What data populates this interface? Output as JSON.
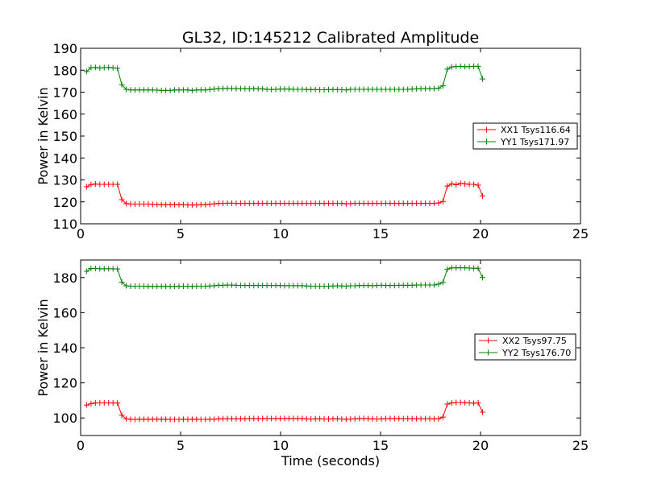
{
  "chart_data": [
    {
      "type": "line",
      "title": "GL32, ID:145212 Calibrated Amplitude",
      "xlabel": "",
      "ylabel": "Power in Kelvin",
      "xlim": [
        0,
        25
      ],
      "ylim": [
        110,
        190
      ],
      "x_ticks": [
        0,
        5,
        10,
        15,
        20,
        25
      ],
      "y_ticks": [
        110,
        120,
        130,
        140,
        150,
        160,
        170,
        180,
        190
      ],
      "grid": false,
      "legend_position": "center-right",
      "marker": "plus",
      "series": [
        {
          "name": "XX1 Tsys116.64",
          "color": "#ff0000",
          "x": [
            0.3,
            0.52,
            0.74,
            0.96,
            1.18,
            1.4,
            1.62,
            1.84,
            2.06,
            2.28,
            2.5,
            2.72,
            2.94,
            3.16,
            3.38,
            3.6,
            3.82,
            4.04,
            4.26,
            4.48,
            4.7,
            4.92,
            5.14,
            5.36,
            5.58,
            5.8,
            6.02,
            6.24,
            6.46,
            6.68,
            6.9,
            7.12,
            7.34,
            7.56,
            7.78,
            8.0,
            8.22,
            8.44,
            8.66,
            8.88,
            9.1,
            9.32,
            9.54,
            9.76,
            9.98,
            10.2,
            10.42,
            10.64,
            10.86,
            11.08,
            11.3,
            11.52,
            11.74,
            11.96,
            12.18,
            12.4,
            12.62,
            12.84,
            13.06,
            13.28,
            13.5,
            13.72,
            13.94,
            14.16,
            14.38,
            14.6,
            14.82,
            15.04,
            15.26,
            15.48,
            15.7,
            15.92,
            16.14,
            16.36,
            16.58,
            16.8,
            17.02,
            17.24,
            17.46,
            17.68,
            17.9,
            18.12,
            18.34,
            18.56,
            18.78,
            19.0,
            19.22,
            19.44,
            19.66,
            19.88,
            20.1
          ],
          "values": [
            126.9,
            127.9,
            128.1,
            128.0,
            128.0,
            128.0,
            128.0,
            128.0,
            121.0,
            119.2,
            119.0,
            119.0,
            119.0,
            119.0,
            119.0,
            118.8,
            118.7,
            118.7,
            118.7,
            118.7,
            118.7,
            118.7,
            118.7,
            118.6,
            118.6,
            118.6,
            118.7,
            118.7,
            118.9,
            119.1,
            119.3,
            119.3,
            119.4,
            119.4,
            119.3,
            119.3,
            119.3,
            119.3,
            119.3,
            119.3,
            119.3,
            119.3,
            119.3,
            119.3,
            119.3,
            119.3,
            119.3,
            119.3,
            119.3,
            119.3,
            119.3,
            119.3,
            119.3,
            119.3,
            119.3,
            119.3,
            119.3,
            119.3,
            119.3,
            119.1,
            119.2,
            119.3,
            119.3,
            119.3,
            119.3,
            119.3,
            119.3,
            119.3,
            119.3,
            119.3,
            119.3,
            119.3,
            119.3,
            119.3,
            119.3,
            119.3,
            119.3,
            119.3,
            119.3,
            119.3,
            119.5,
            120.2,
            127.2,
            128.2,
            127.8,
            128.4,
            128.2,
            128.0,
            128.0,
            127.6,
            122.7
          ]
        },
        {
          "name": "YY1 Tsys171.97",
          "color": "#008000",
          "x": [
            0.3,
            0.52,
            0.74,
            0.96,
            1.18,
            1.4,
            1.62,
            1.84,
            2.06,
            2.28,
            2.5,
            2.72,
            2.94,
            3.16,
            3.38,
            3.6,
            3.82,
            4.04,
            4.26,
            4.48,
            4.7,
            4.92,
            5.14,
            5.36,
            5.58,
            5.8,
            6.02,
            6.24,
            6.46,
            6.68,
            6.9,
            7.12,
            7.34,
            7.56,
            7.78,
            8.0,
            8.22,
            8.44,
            8.66,
            8.88,
            9.1,
            9.32,
            9.54,
            9.76,
            9.98,
            10.2,
            10.42,
            10.64,
            10.86,
            11.08,
            11.3,
            11.52,
            11.74,
            11.96,
            12.18,
            12.4,
            12.62,
            12.84,
            13.06,
            13.28,
            13.5,
            13.72,
            13.94,
            14.16,
            14.38,
            14.6,
            14.82,
            15.04,
            15.26,
            15.48,
            15.7,
            15.92,
            16.14,
            16.36,
            16.58,
            16.8,
            17.02,
            17.24,
            17.46,
            17.68,
            17.9,
            18.12,
            18.34,
            18.56,
            18.78,
            19.0,
            19.22,
            19.44,
            19.66,
            19.88,
            20.1
          ],
          "values": [
            179.4,
            181.2,
            181.3,
            181.0,
            181.2,
            181.3,
            181.1,
            180.9,
            173.4,
            171.3,
            171.0,
            171.0,
            171.0,
            171.0,
            171.0,
            171.0,
            170.9,
            170.8,
            170.8,
            170.8,
            171.0,
            171.0,
            171.0,
            171.0,
            170.8,
            171.0,
            171.0,
            171.0,
            171.2,
            171.4,
            171.6,
            171.7,
            171.7,
            171.7,
            171.6,
            171.6,
            171.6,
            171.5,
            171.6,
            171.5,
            171.5,
            171.3,
            171.2,
            171.3,
            171.4,
            171.4,
            171.4,
            171.3,
            171.3,
            171.3,
            171.2,
            171.2,
            171.2,
            171.1,
            171.1,
            171.2,
            171.2,
            171.2,
            171.1,
            171.0,
            171.3,
            171.3,
            171.3,
            171.3,
            171.3,
            171.3,
            171.3,
            171.3,
            171.3,
            171.3,
            171.3,
            171.3,
            171.3,
            171.3,
            171.4,
            171.5,
            171.6,
            171.6,
            171.6,
            171.6,
            171.8,
            172.9,
            180.5,
            181.5,
            181.7,
            181.8,
            181.6,
            181.7,
            181.8,
            181.8,
            176.0
          ]
        }
      ]
    },
    {
      "type": "line",
      "title": "",
      "xlabel": "Time (seconds)",
      "ylabel": "Power in Kelvin",
      "xlim": [
        0,
        25
      ],
      "ylim": [
        90,
        190
      ],
      "x_ticks": [
        0,
        5,
        10,
        15,
        20,
        25
      ],
      "y_ticks": [
        100,
        120,
        140,
        160,
        180
      ],
      "grid": false,
      "legend_position": "center-right",
      "marker": "plus",
      "series": [
        {
          "name": "XX2 Tsys97.75",
          "color": "#ff0000",
          "x": [
            0.3,
            0.52,
            0.74,
            0.96,
            1.18,
            1.4,
            1.62,
            1.84,
            2.06,
            2.28,
            2.5,
            2.72,
            2.94,
            3.16,
            3.38,
            3.6,
            3.82,
            4.04,
            4.26,
            4.48,
            4.7,
            4.92,
            5.14,
            5.36,
            5.58,
            5.8,
            6.02,
            6.24,
            6.46,
            6.68,
            6.9,
            7.12,
            7.34,
            7.56,
            7.78,
            8.0,
            8.22,
            8.44,
            8.66,
            8.88,
            9.1,
            9.32,
            9.54,
            9.76,
            9.98,
            10.2,
            10.42,
            10.64,
            10.86,
            11.08,
            11.3,
            11.52,
            11.74,
            11.96,
            12.18,
            12.4,
            12.62,
            12.84,
            13.06,
            13.28,
            13.5,
            13.72,
            13.94,
            14.16,
            14.38,
            14.6,
            14.82,
            15.04,
            15.26,
            15.48,
            15.7,
            15.92,
            16.14,
            16.36,
            16.58,
            16.8,
            17.02,
            17.24,
            17.46,
            17.68,
            17.9,
            18.12,
            18.34,
            18.56,
            18.78,
            19.0,
            19.22,
            19.44,
            19.66,
            19.88,
            20.1
          ],
          "values": [
            107.3,
            108.2,
            108.5,
            108.6,
            108.6,
            108.6,
            108.5,
            108.5,
            101.5,
            99.5,
            99.3,
            99.2,
            99.3,
            99.3,
            99.3,
            99.3,
            99.3,
            99.3,
            99.3,
            99.2,
            99.2,
            99.2,
            99.3,
            99.2,
            99.3,
            99.3,
            99.2,
            99.2,
            99.3,
            99.3,
            99.5,
            99.6,
            99.6,
            99.6,
            99.6,
            99.6,
            99.6,
            99.7,
            99.7,
            99.6,
            99.7,
            99.7,
            99.7,
            99.7,
            99.7,
            99.7,
            99.7,
            99.7,
            99.7,
            99.7,
            99.5,
            99.4,
            99.5,
            99.6,
            99.4,
            99.4,
            99.5,
            99.6,
            99.4,
            99.3,
            99.4,
            99.5,
            99.7,
            99.7,
            99.6,
            99.5,
            99.4,
            99.5,
            99.6,
            99.7,
            99.7,
            99.7,
            99.6,
            99.7,
            99.6,
            99.6,
            99.6,
            99.6,
            99.6,
            99.5,
            99.6,
            100.5,
            107.9,
            108.6,
            108.8,
            108.8,
            108.7,
            108.6,
            108.4,
            108.6,
            103.3
          ]
        },
        {
          "name": "YY2 Tsys176.70",
          "color": "#008000",
          "x": [
            0.3,
            0.52,
            0.74,
            0.96,
            1.18,
            1.4,
            1.62,
            1.84,
            2.06,
            2.28,
            2.5,
            2.72,
            2.94,
            3.16,
            3.38,
            3.6,
            3.82,
            4.04,
            4.26,
            4.48,
            4.7,
            4.92,
            5.14,
            5.36,
            5.58,
            5.8,
            6.02,
            6.24,
            6.46,
            6.68,
            6.9,
            7.12,
            7.34,
            7.56,
            7.78,
            8.0,
            8.22,
            8.44,
            8.66,
            8.88,
            9.1,
            9.32,
            9.54,
            9.76,
            9.98,
            10.2,
            10.42,
            10.64,
            10.86,
            11.08,
            11.3,
            11.52,
            11.74,
            11.96,
            12.18,
            12.4,
            12.62,
            12.84,
            13.06,
            13.28,
            13.5,
            13.72,
            13.94,
            14.16,
            14.38,
            14.6,
            14.82,
            15.04,
            15.26,
            15.48,
            15.7,
            15.92,
            16.14,
            16.36,
            16.58,
            16.8,
            17.02,
            17.24,
            17.46,
            17.68,
            17.9,
            18.12,
            18.34,
            18.56,
            18.78,
            19.0,
            19.22,
            19.44,
            19.66,
            19.88,
            20.1
          ],
          "values": [
            183.6,
            185.2,
            185.2,
            185.0,
            185.0,
            185.0,
            185.0,
            184.9,
            177.4,
            175.3,
            175.1,
            175.1,
            175.1,
            175.1,
            175.0,
            175.0,
            175.0,
            175.0,
            175.0,
            175.0,
            175.0,
            175.0,
            175.1,
            175.1,
            175.0,
            175.1,
            175.1,
            175.1,
            175.2,
            175.4,
            175.6,
            175.6,
            175.7,
            175.7,
            175.6,
            175.5,
            175.5,
            175.5,
            175.5,
            175.5,
            175.5,
            175.5,
            175.5,
            175.5,
            175.5,
            175.4,
            175.4,
            175.4,
            175.4,
            175.4,
            175.2,
            175.1,
            175.1,
            175.1,
            175.1,
            175.1,
            175.2,
            175.3,
            175.2,
            175.1,
            175.3,
            175.3,
            175.5,
            175.5,
            175.5,
            175.4,
            175.5,
            175.6,
            175.5,
            175.5,
            175.5,
            175.6,
            175.6,
            175.6,
            175.6,
            175.7,
            175.8,
            175.8,
            175.8,
            175.8,
            176.3,
            177.2,
            184.8,
            185.5,
            185.5,
            185.6,
            185.6,
            185.4,
            185.3,
            185.3,
            180.0
          ]
        }
      ]
    }
  ]
}
